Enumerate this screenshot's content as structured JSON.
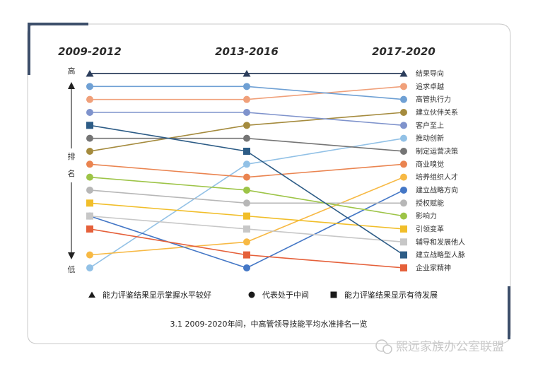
{
  "chart_data": {
    "type": "line",
    "title": "3.1  2009-2020年间，中高管领导技能平均水准排名一览",
    "categories": [
      "2009-2012",
      "2013-2016",
      "2017-2020"
    ],
    "y_axis": {
      "top_label": "高",
      "bottom_label": "低",
      "title": "排名",
      "direction": "rank 1 = top"
    },
    "series": [
      {
        "name": "结果导向",
        "color": "#2c3e5c",
        "marker": "triangle",
        "ranks": [
          1,
          1,
          1
        ]
      },
      {
        "name": "追求卓越",
        "color": "#f0a07a",
        "marker": "circle",
        "ranks": [
          3,
          3,
          2
        ]
      },
      {
        "name": "高管执行力",
        "color": "#6fa0d4",
        "marker": "circle",
        "ranks": [
          2,
          2,
          3
        ]
      },
      {
        "name": "建立伙伴关系",
        "color": "#a58b3e",
        "marker": "circle",
        "ranks": [
          7,
          5,
          4
        ]
      },
      {
        "name": "客户至上",
        "color": "#7f93cc",
        "marker": "circle",
        "ranks": [
          4,
          4,
          5
        ]
      },
      {
        "name": "推动创新",
        "color": "#92c1e6",
        "marker": "circle",
        "ranks": [
          16,
          8,
          6
        ]
      },
      {
        "name": "制定运营决策",
        "color": "#757575",
        "marker": "circle",
        "ranks": [
          6,
          6,
          7
        ]
      },
      {
        "name": "商业嗅觉",
        "color": "#ea8450",
        "marker": "circle",
        "ranks": [
          8,
          9,
          8
        ]
      },
      {
        "name": "培养组织人才",
        "color": "#f7b944",
        "marker": "circle",
        "ranks": [
          15,
          14,
          9
        ]
      },
      {
        "name": "建立战略方向",
        "color": "#4477c6",
        "marker": "circle",
        "ranks": [
          12,
          16,
          10
        ]
      },
      {
        "name": "授权赋能",
        "color": "#b7b7b7",
        "marker": "circle",
        "ranks": [
          10,
          11,
          11
        ]
      },
      {
        "name": "影响力",
        "color": "#9dc447",
        "marker": "circle",
        "ranks": [
          9,
          10,
          12
        ]
      },
      {
        "name": "引领变革",
        "color": "#f1be2a",
        "marker": "square",
        "ranks": [
          11,
          12,
          13
        ]
      },
      {
        "name": "辅导和发展他人",
        "color": "#c7c7c7",
        "marker": "square",
        "ranks": [
          12,
          13,
          14
        ]
      },
      {
        "name": "建立战略型人脉",
        "color": "#2d5c86",
        "marker": "square",
        "ranks": [
          5,
          7,
          15
        ]
      },
      {
        "name": "企业家精神",
        "color": "#e5603a",
        "marker": "square",
        "ranks": [
          13,
          15,
          16
        ]
      }
    ],
    "legend": [
      {
        "marker": "triangle",
        "text": "能力评鉴结果显示掌握水平较好"
      },
      {
        "marker": "circle",
        "text": "代表处于中间"
      },
      {
        "marker": "square",
        "text": "能力评鉴结果显示有待发展"
      }
    ]
  },
  "watermark": "熙远家族办公室联盟"
}
